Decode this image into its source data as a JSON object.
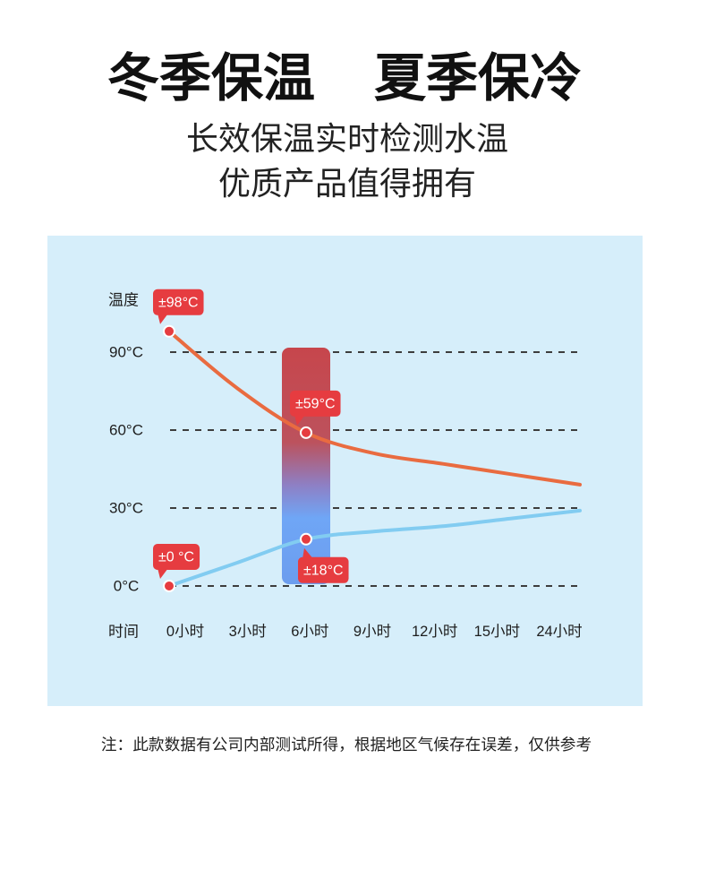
{
  "header": {
    "title_left": "冬季保温",
    "title_right": "夏季保冷",
    "subtitle_lines": [
      "长效保温实时检测水温",
      "优质产品值得拥有"
    ]
  },
  "chart_data": {
    "type": "line",
    "xlabel": "时间",
    "ylabel": "温度",
    "categories": [
      "0小时",
      "3小时",
      "6小时",
      "9小时",
      "12小时",
      "15小时",
      "24小时"
    ],
    "yticks": [
      0,
      30,
      60,
      90
    ],
    "ytick_labels": [
      "0°C",
      "30°C",
      "60°C",
      "90°C"
    ],
    "ylim": [
      0,
      100
    ],
    "grid": true,
    "highlight_category": "6小时",
    "series": [
      {
        "color": "#E96B40",
        "values": [
          98,
          76,
          59,
          51,
          47,
          43,
          39
        ],
        "point_labels": [
          {
            "index": 0,
            "text": "±98°C",
            "placement": "above"
          },
          {
            "index": 2,
            "text": "±59°C",
            "placement": "above"
          }
        ]
      },
      {
        "color": "#82CCF1",
        "values": [
          0,
          9,
          18,
          21,
          23,
          26,
          29
        ],
        "point_labels": [
          {
            "index": 0,
            "text": "±0 °C",
            "placement": "above"
          },
          {
            "index": 2,
            "text": "±18°C",
            "placement": "below"
          }
        ]
      }
    ]
  },
  "colors": {
    "panel_background": "#D6EEFA",
    "callout": "#E63C40",
    "grid": "#3D3D3D",
    "highlight_bar_gradient": [
      "#C7464C",
      "#BC525D",
      "#8E7FC4",
      "#6FA6F6",
      "#6C9DEE"
    ]
  },
  "footnote": "注：此款数据有公司内部测试所得，根据地区气候存在误差，仅供参考"
}
